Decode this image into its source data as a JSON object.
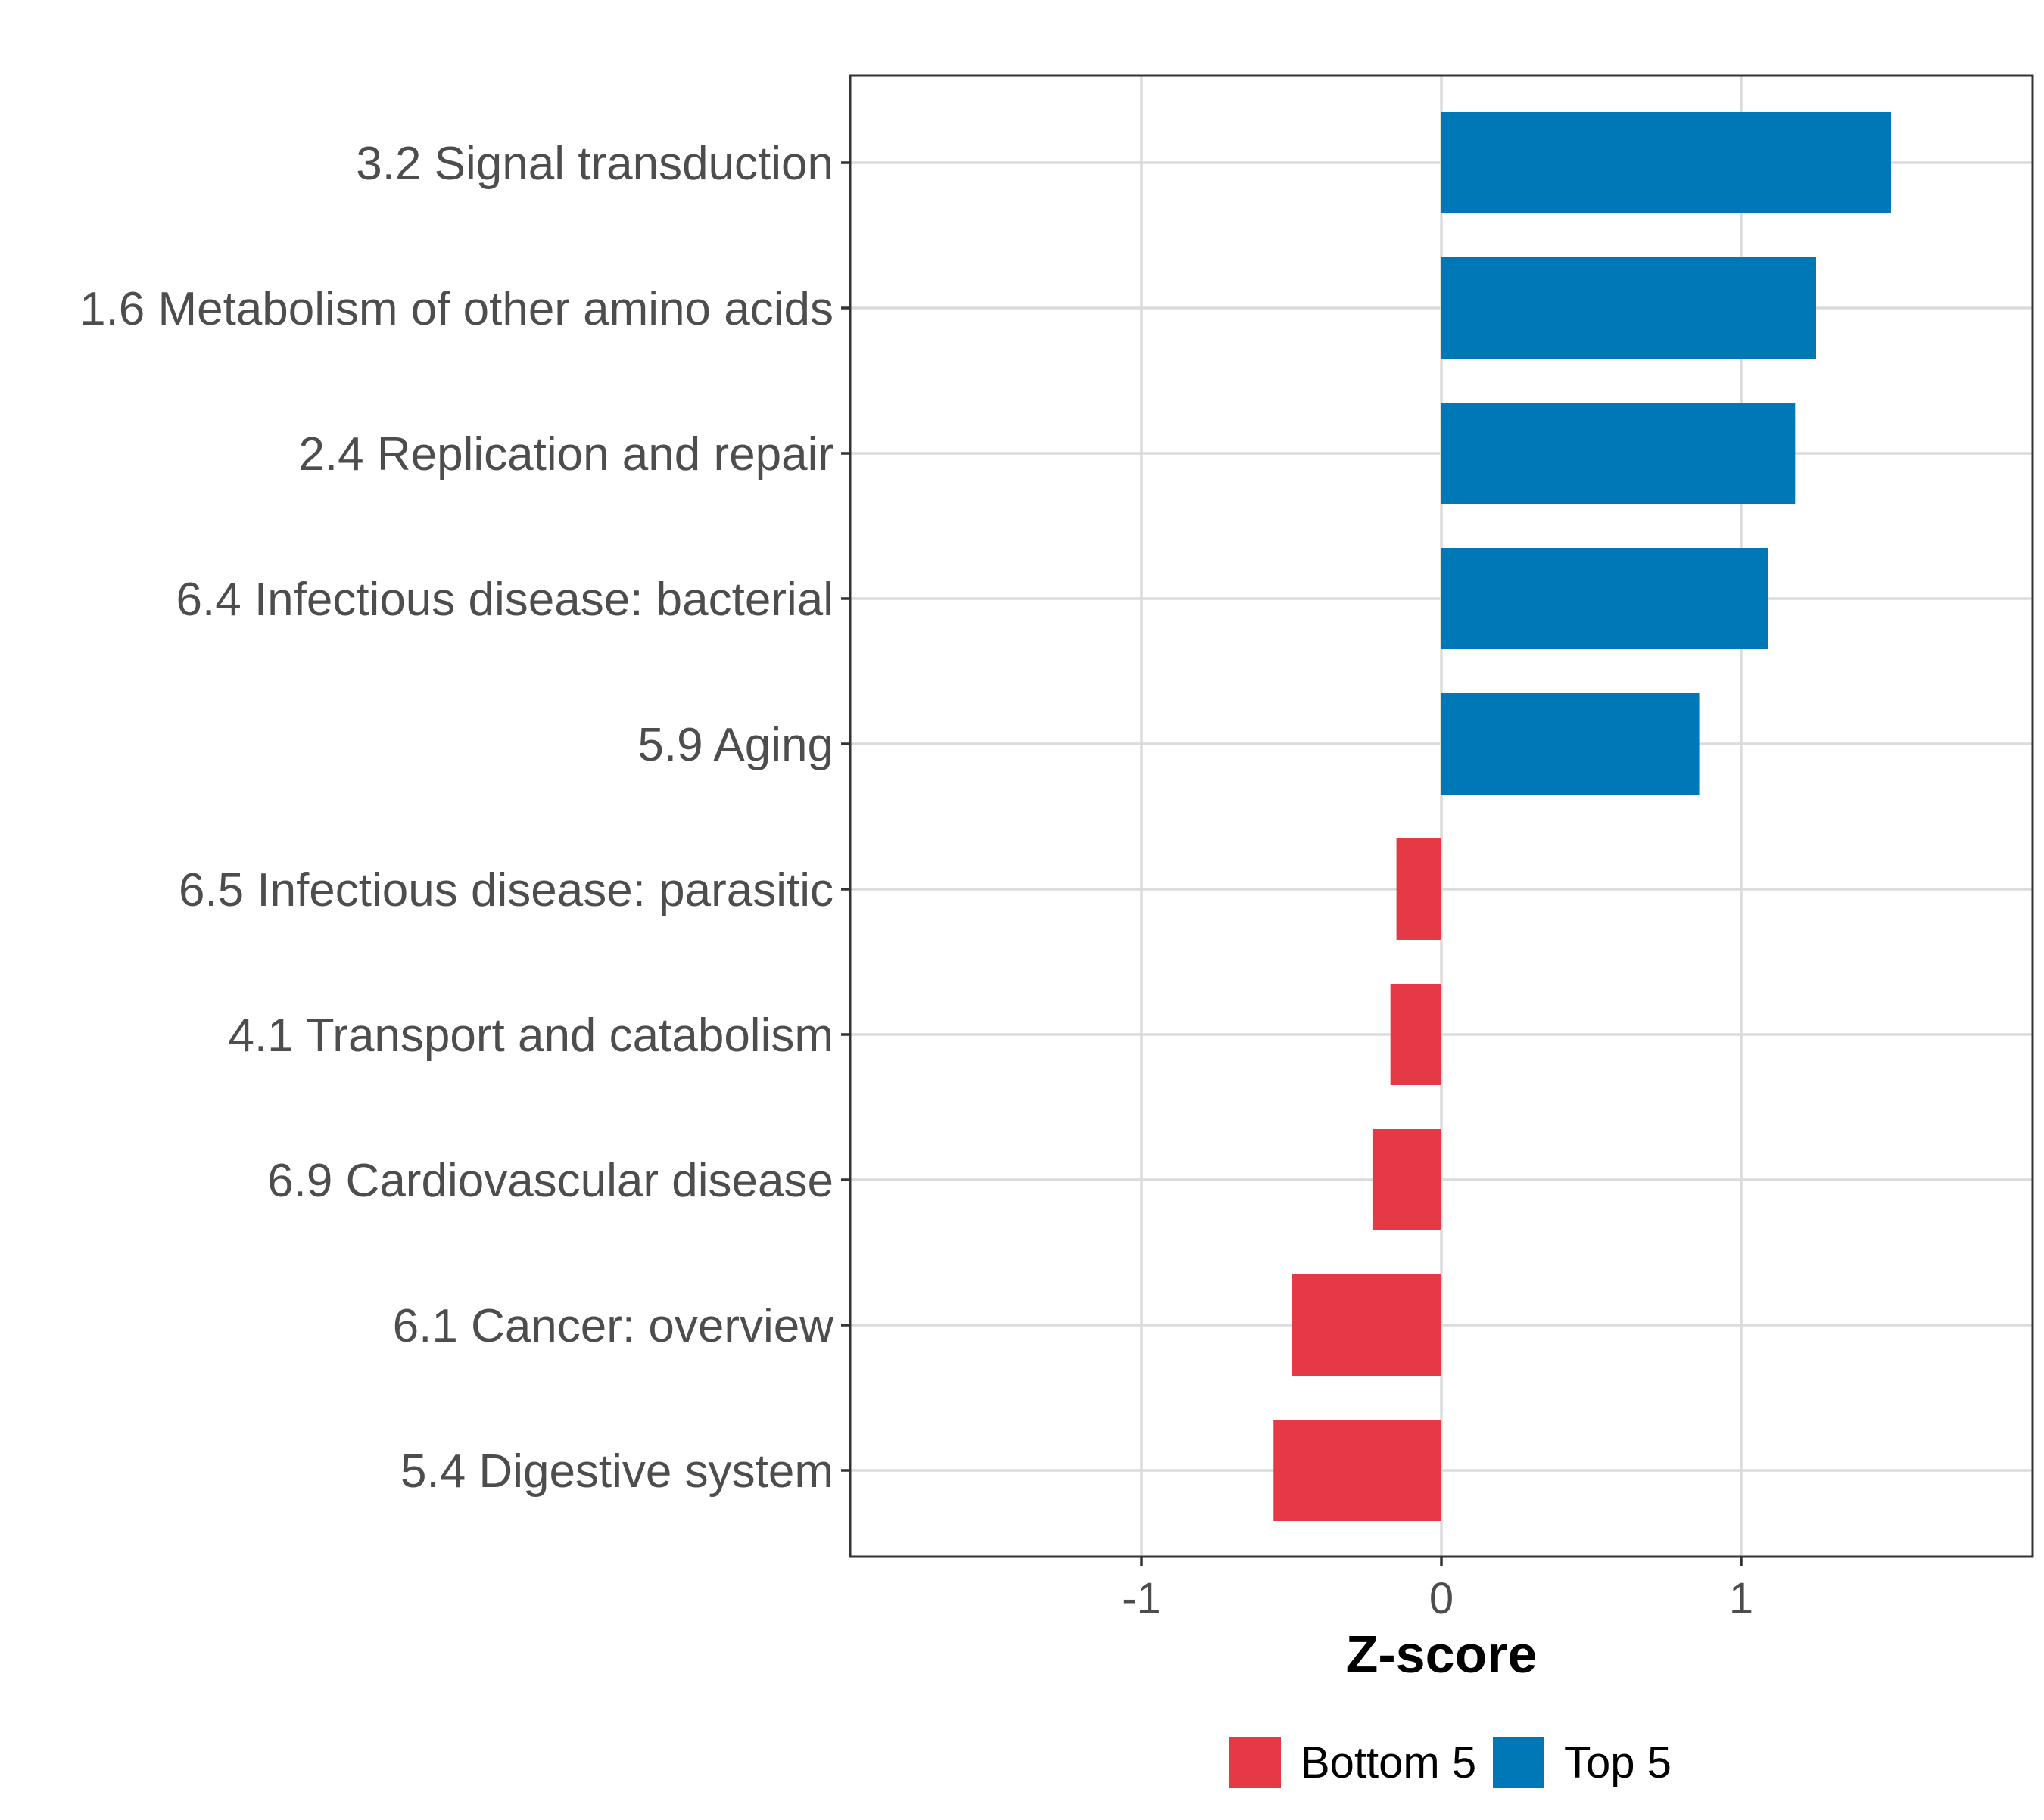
{
  "chart_data": {
    "type": "bar",
    "orientation": "horizontal",
    "title": "",
    "xlabel": "Z-score",
    "ylabel": "",
    "xlim": [
      -1.9,
      2.05
    ],
    "xticks": [
      -1,
      0,
      1
    ],
    "xtick_labels": [
      "-1",
      "0",
      "1"
    ],
    "grid": true,
    "legend_position": "bottom",
    "categories": [
      "3.2 Signal transduction",
      "1.6 Metabolism of other amino acids",
      "2.4 Replication and repair",
      "6.4 Infectious disease: bacterial",
      "5.9 Aging",
      "6.5 Infectious disease: parasitic",
      "4.1 Transport and catabolism",
      "6.9 Cardiovascular disease",
      "6.1 Cancer: overview",
      "5.4 Digestive system"
    ],
    "values": [
      1.5,
      1.25,
      1.18,
      1.09,
      0.86,
      -0.15,
      -0.17,
      -0.23,
      -0.5,
      -0.56
    ],
    "groups": [
      "Top 5",
      "Top 5",
      "Top 5",
      "Top 5",
      "Top 5",
      "Bottom 5",
      "Bottom 5",
      "Bottom 5",
      "Bottom 5",
      "Bottom 5"
    ],
    "legend": [
      {
        "name": "Bottom 5",
        "color": "#e63946"
      },
      {
        "name": "Top 5",
        "color": "#0077b6"
      }
    ]
  }
}
